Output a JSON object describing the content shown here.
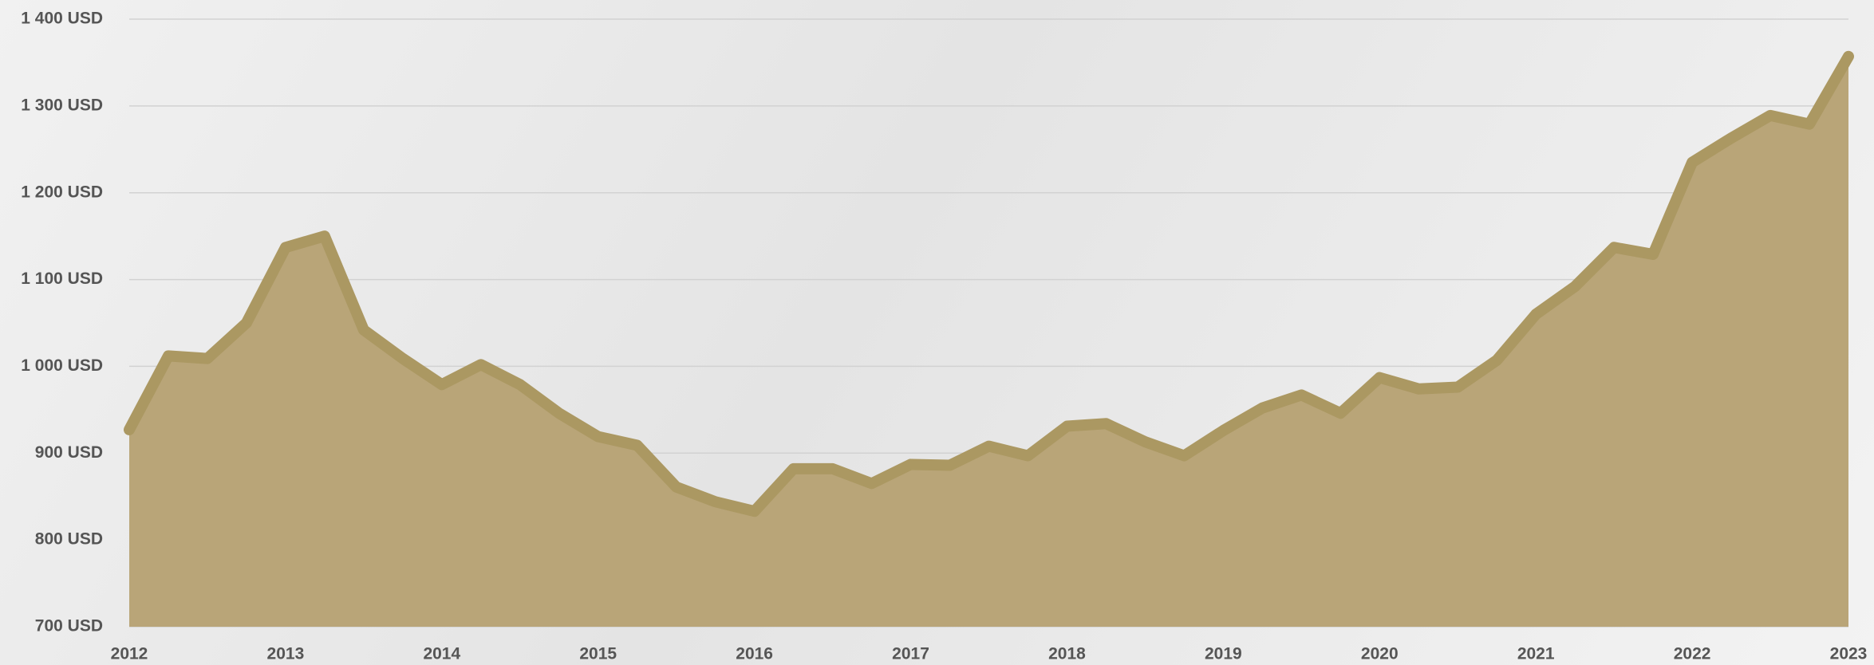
{
  "chart_data": {
    "type": "area",
    "x": [
      2012,
      2012.25,
      2012.5,
      2012.75,
      2013,
      2013.25,
      2013.5,
      2013.75,
      2014,
      2014.25,
      2014.5,
      2014.75,
      2015,
      2015.25,
      2015.5,
      2015.75,
      2016,
      2016.25,
      2016.5,
      2016.75,
      2017,
      2017.25,
      2017.5,
      2017.75,
      2018,
      2018.25,
      2018.5,
      2018.75,
      2019,
      2019.25,
      2019.5,
      2019.75,
      2020,
      2020.25,
      2020.5,
      2020.75,
      2021,
      2021.25,
      2021.5,
      2021.75,
      2022,
      2022.25,
      2022.5,
      2022.75,
      2023
    ],
    "values": [
      927,
      1012,
      1009,
      1050,
      1137,
      1150,
      1042,
      1009,
      979,
      1002,
      979,
      946,
      919,
      909,
      861,
      844,
      833,
      882,
      882,
      865,
      887,
      886,
      908,
      897,
      931,
      934,
      913,
      897,
      926,
      952,
      967,
      946,
      987,
      974,
      976,
      1007,
      1060,
      1092,
      1137,
      1129,
      1235,
      1263,
      1289,
      1279,
      1357
    ],
    "color": "#b9a578",
    "line_color": "#ab9862",
    "xlim": [
      2012,
      2023
    ],
    "xticks": [
      2012,
      2013,
      2014,
      2015,
      2016,
      2017,
      2018,
      2019,
      2020,
      2021,
      2022,
      2023
    ],
    "ylim": [
      700,
      1400
    ],
    "yticks": [
      {
        "value": 700,
        "label": "700 USD"
      },
      {
        "value": 800,
        "label": "800 USD"
      },
      {
        "value": 900,
        "label": "900 USD"
      },
      {
        "value": 1000,
        "label": "1 000 USD"
      },
      {
        "value": 1100,
        "label": "1 100 USD"
      },
      {
        "value": 1200,
        "label": "1 200 USD"
      },
      {
        "value": 1300,
        "label": "1 300 USD"
      },
      {
        "value": 1400,
        "label": "1 400 USD"
      }
    ],
    "grid": true
  }
}
